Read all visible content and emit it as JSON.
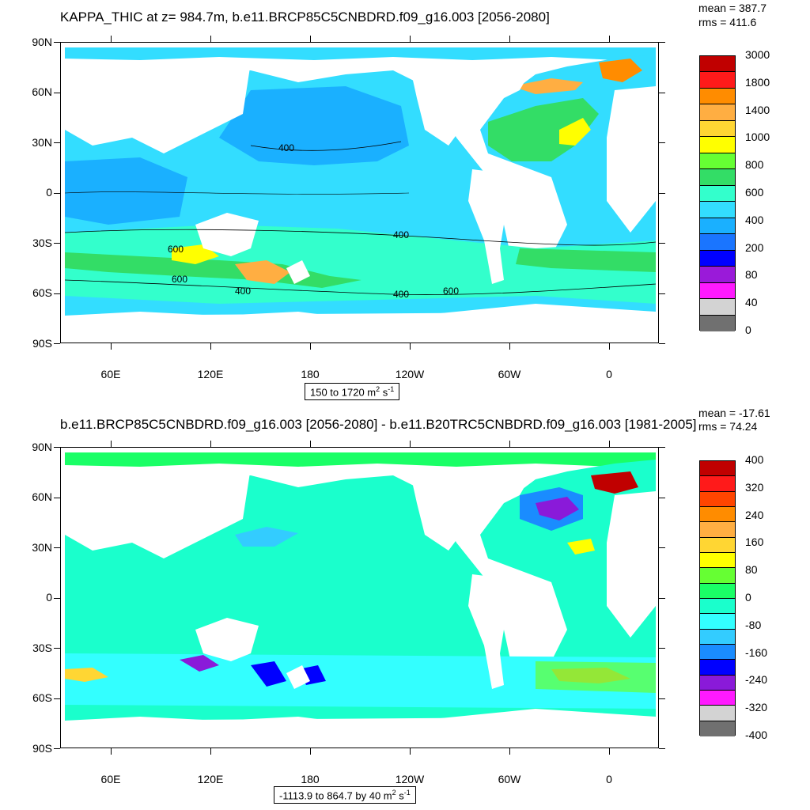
{
  "top": {
    "title": "KAPPA_THIC at z= 984.7m, b.e11.BRCP85C5CNBDRD.f09_g16.003 [2056-2080]",
    "mean": "mean = 387.7",
    "rms": "rms = 411.6",
    "lat_labels": [
      "90N",
      "60N",
      "30N",
      "0",
      "30S",
      "60S",
      "90S"
    ],
    "lon_labels": [
      "60E",
      "120E",
      "180",
      "120W",
      "60W",
      "0"
    ],
    "range_text": "150 to 1720 m",
    "range_sup1": "2",
    "range_mid": " s",
    "range_sup2": "-1",
    "contour_labels": [
      "400",
      "400",
      "600",
      "600",
      "400",
      "400",
      "600"
    ],
    "colorbar_labels": [
      "3000",
      "1800",
      "1400",
      "1000",
      "800",
      "600",
      "400",
      "200",
      "80",
      "40",
      "0"
    ],
    "colorbar_colors": [
      "#c00000",
      "#ff1a1a",
      "#ff8c00",
      "#ffae42",
      "#ffd633",
      "#ffff00",
      "#66ff33",
      "#33dd66",
      "#33ffcc",
      "#33ddff",
      "#1ab0ff",
      "#1a75ff",
      "#0000ff",
      "#9a1ad9",
      "#ff1aff",
      "#d3d3d3",
      "#707070"
    ]
  },
  "bottom": {
    "title": "b.e11.BRCP85C5CNBDRD.f09_g16.003 [2056-2080] - b.e11.B20TRC5CNBDRD.f09_g16.003 [1981-2005]",
    "mean": "mean = -17.61",
    "rms": "rms = 74.24",
    "lat_labels": [
      "90N",
      "60N",
      "30N",
      "0",
      "30S",
      "60S",
      "90S"
    ],
    "lon_labels": [
      "60E",
      "120E",
      "180",
      "120W",
      "60W",
      "0"
    ],
    "range_text": "-1113.9 to 864.7 by 40 m",
    "range_sup1": "2",
    "range_mid": " s",
    "range_sup2": "-1",
    "colorbar_labels": [
      "400",
      "320",
      "240",
      "160",
      "80",
      "0",
      "-80",
      "-160",
      "-240",
      "-320",
      "-400"
    ],
    "colorbar_colors": [
      "#c00000",
      "#ff1a1a",
      "#ff4500",
      "#ff8c00",
      "#ffae42",
      "#ffd633",
      "#ffff00",
      "#66ff33",
      "#1aff66",
      "#1affcc",
      "#33ffff",
      "#33ccff",
      "#1a8cff",
      "#0000ff",
      "#8a1ad9",
      "#ff1aff",
      "#d3d3d3",
      "#707070"
    ]
  }
}
